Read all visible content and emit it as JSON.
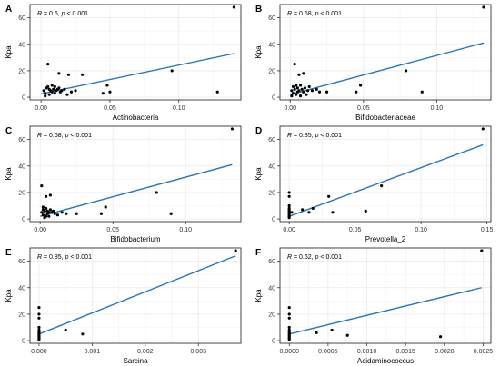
{
  "chart_data": [
    {
      "letter": "A",
      "type": "scatter",
      "xlabel": "Actinobacteria",
      "ylabel": "Kpa",
      "stat": {
        "r_prefix": "R",
        "r_value": " = 0.6, ",
        "p_prefix": "p",
        "p_value": " < 0.001"
      },
      "xlim": [
        -0.008,
        0.145
      ],
      "ylim": [
        -2,
        70
      ],
      "xticks": [
        {
          "v": 0,
          "label": "0.00"
        },
        {
          "v": 0.05,
          "label": "0.05"
        },
        {
          "v": 0.1,
          "label": "0.10"
        }
      ],
      "yticks": [
        {
          "v": 0,
          "label": "0"
        },
        {
          "v": 20,
          "label": "20"
        },
        {
          "v": 40,
          "label": "40"
        },
        {
          "v": 60,
          "label": "60"
        }
      ],
      "fit": [
        [
          0,
          2.5
        ],
        [
          0.14,
          33
        ]
      ],
      "points": [
        [
          0.002,
          5
        ],
        [
          0.003,
          3
        ],
        [
          0.004,
          7
        ],
        [
          0.005,
          8
        ],
        [
          0.005,
          25
        ],
        [
          0.006,
          2
        ],
        [
          0.007,
          5
        ],
        [
          0.008,
          4
        ],
        [
          0.009,
          6
        ],
        [
          0.01,
          8
        ],
        [
          0.01,
          3
        ],
        [
          0.011,
          5
        ],
        [
          0.012,
          6
        ],
        [
          0.013,
          18
        ],
        [
          0.013,
          7
        ],
        [
          0.014,
          4
        ],
        [
          0.015,
          5
        ],
        [
          0.017,
          6
        ],
        [
          0.019,
          2
        ],
        [
          0.02,
          17
        ],
        [
          0.022,
          4
        ],
        [
          0.025,
          5
        ],
        [
          0.03,
          17
        ],
        [
          0.045,
          3
        ],
        [
          0.048,
          9
        ],
        [
          0.05,
          4
        ],
        [
          0.095,
          20
        ],
        [
          0.128,
          4
        ],
        [
          0.14,
          68
        ],
        [
          0.003,
          1
        ],
        [
          0.006,
          6
        ],
        [
          0.008,
          9
        ]
      ]
    },
    {
      "letter": "B",
      "type": "scatter",
      "xlabel": "Bifidobacteriaceae",
      "ylabel": "Kpa",
      "stat": {
        "r_prefix": "R",
        "r_value": " = 0.68, ",
        "p_prefix": "p",
        "p_value": " < 0.001"
      },
      "xlim": [
        -0.007,
        0.137
      ],
      "ylim": [
        -2,
        70
      ],
      "xticks": [
        {
          "v": 0,
          "label": "0.00"
        },
        {
          "v": 0.05,
          "label": "0.05"
        },
        {
          "v": 0.1,
          "label": "0.10"
        }
      ],
      "yticks": [
        {
          "v": 0,
          "label": "0"
        },
        {
          "v": 20,
          "label": "20"
        },
        {
          "v": 40,
          "label": "40"
        },
        {
          "v": 60,
          "label": "60"
        }
      ],
      "fit": [
        [
          0,
          2
        ],
        [
          0.132,
          41
        ]
      ],
      "points": [
        [
          0.001,
          5
        ],
        [
          0.002,
          8
        ],
        [
          0.002,
          3
        ],
        [
          0.003,
          25
        ],
        [
          0.003,
          6
        ],
        [
          0.004,
          2
        ],
        [
          0.005,
          7
        ],
        [
          0.005,
          4
        ],
        [
          0.006,
          17
        ],
        [
          0.006,
          5
        ],
        [
          0.007,
          9
        ],
        [
          0.008,
          6
        ],
        [
          0.009,
          18
        ],
        [
          0.009,
          4
        ],
        [
          0.01,
          7
        ],
        [
          0.011,
          2
        ],
        [
          0.012,
          5
        ],
        [
          0.013,
          8
        ],
        [
          0.015,
          5
        ],
        [
          0.018,
          6
        ],
        [
          0.02,
          4
        ],
        [
          0.025,
          4
        ],
        [
          0.045,
          4
        ],
        [
          0.048,
          9
        ],
        [
          0.079,
          20
        ],
        [
          0.09,
          4
        ],
        [
          0.132,
          68
        ],
        [
          0.001,
          1
        ],
        [
          0.004,
          9
        ],
        [
          0.007,
          1
        ]
      ]
    },
    {
      "letter": "C",
      "type": "scatter",
      "xlabel": "Bifidobacterium",
      "ylabel": "Kpa",
      "stat": {
        "r_prefix": "R",
        "r_value": " = 0.68, ",
        "p_prefix": "p",
        "p_value": " < 0.001"
      },
      "xlim": [
        -0.007,
        0.138
      ],
      "ylim": [
        -2,
        70
      ],
      "xticks": [
        {
          "v": 0,
          "label": "0.00"
        },
        {
          "v": 0.05,
          "label": "0.05"
        },
        {
          "v": 0.1,
          "label": "0.10"
        }
      ],
      "yticks": [
        {
          "v": 0,
          "label": "0"
        },
        {
          "v": 20,
          "label": "20"
        },
        {
          "v": 40,
          "label": "40"
        },
        {
          "v": 60,
          "label": "60"
        }
      ],
      "fit": [
        [
          0,
          2
        ],
        [
          0.132,
          41
        ]
      ],
      "points": [
        [
          0.001,
          5
        ],
        [
          0.001,
          25
        ],
        [
          0.002,
          7
        ],
        [
          0.002,
          3
        ],
        [
          0.003,
          6
        ],
        [
          0.003,
          1
        ],
        [
          0.004,
          17
        ],
        [
          0.004,
          8
        ],
        [
          0.005,
          4
        ],
        [
          0.005,
          6
        ],
        [
          0.006,
          2
        ],
        [
          0.006,
          5
        ],
        [
          0.007,
          18
        ],
        [
          0.007,
          7
        ],
        [
          0.008,
          5
        ],
        [
          0.009,
          6
        ],
        [
          0.01,
          4
        ],
        [
          0.012,
          3
        ],
        [
          0.015,
          5
        ],
        [
          0.018,
          4
        ],
        [
          0.025,
          4
        ],
        [
          0.042,
          4
        ],
        [
          0.045,
          9
        ],
        [
          0.08,
          20
        ],
        [
          0.09,
          4
        ],
        [
          0.132,
          68
        ],
        [
          0.002,
          9
        ],
        [
          0.004,
          2
        ]
      ]
    },
    {
      "letter": "D",
      "type": "scatter",
      "xlabel": "Prevotella_2",
      "ylabel": "Kpa",
      "stat": {
        "r_prefix": "R",
        "r_value": " = 0.85, ",
        "p_prefix": "p",
        "p_value": " < 0.001"
      },
      "xlim": [
        -0.007,
        0.153
      ],
      "ylim": [
        -2,
        70
      ],
      "xticks": [
        {
          "v": 0,
          "label": "0.00"
        },
        {
          "v": 0.05,
          "label": "0.05"
        },
        {
          "v": 0.1,
          "label": "0.10"
        },
        {
          "v": 0.15,
          "label": "0.15"
        }
      ],
      "yticks": [
        {
          "v": 0,
          "label": "0"
        },
        {
          "v": 20,
          "label": "20"
        },
        {
          "v": 40,
          "label": "40"
        },
        {
          "v": 60,
          "label": "60"
        }
      ],
      "fit": [
        [
          0,
          2
        ],
        [
          0.147,
          56
        ]
      ],
      "points": [
        [
          0,
          2
        ],
        [
          0,
          4
        ],
        [
          0,
          5
        ],
        [
          0,
          6
        ],
        [
          0,
          7
        ],
        [
          0,
          8
        ],
        [
          0,
          10
        ],
        [
          0,
          17
        ],
        [
          0,
          20
        ],
        [
          0,
          1
        ],
        [
          0,
          3
        ],
        [
          0.002,
          5
        ],
        [
          0.01,
          7
        ],
        [
          0.015,
          5
        ],
        [
          0.018,
          8
        ],
        [
          0.03,
          17
        ],
        [
          0.033,
          5
        ],
        [
          0.07,
          25
        ],
        [
          0.058,
          6
        ],
        [
          0.147,
          68
        ]
      ]
    },
    {
      "letter": "E",
      "type": "scatter",
      "xlabel": "Sarcina",
      "ylabel": "Kpa",
      "stat": {
        "r_prefix": "R",
        "r_value": " = 0.85, ",
        "p_prefix": "p",
        "p_value": " < 0.001"
      },
      "xlim": [
        -0.00017,
        0.0038
      ],
      "ylim": [
        -2,
        70
      ],
      "xticks": [
        {
          "v": 0,
          "label": "0.000"
        },
        {
          "v": 0.001,
          "label": "0.001"
        },
        {
          "v": 0.002,
          "label": "0.002"
        },
        {
          "v": 0.003,
          "label": "0.003"
        }
      ],
      "yticks": [
        {
          "v": 0,
          "label": "0"
        },
        {
          "v": 20,
          "label": "20"
        },
        {
          "v": 40,
          "label": "40"
        },
        {
          "v": 60,
          "label": "60"
        }
      ],
      "fit": [
        [
          0,
          5
        ],
        [
          0.0037,
          64
        ]
      ],
      "points": [
        [
          0,
          2
        ],
        [
          0,
          3
        ],
        [
          0,
          4
        ],
        [
          0,
          5
        ],
        [
          0,
          6
        ],
        [
          0,
          7
        ],
        [
          0,
          8
        ],
        [
          0,
          10
        ],
        [
          0,
          17
        ],
        [
          0,
          20
        ],
        [
          0,
          25
        ],
        [
          0,
          1
        ],
        [
          0.0005,
          8
        ],
        [
          0.00082,
          5
        ],
        [
          0.0037,
          68
        ]
      ]
    },
    {
      "letter": "F",
      "type": "scatter",
      "xlabel": "Acidaminococcus",
      "ylabel": "Kpa",
      "stat": {
        "r_prefix": "R",
        "r_value": " = 0.62, ",
        "p_prefix": "p",
        "p_value": " < 0.001"
      },
      "xlim": [
        -0.00012,
        0.0026
      ],
      "ylim": [
        -2,
        70
      ],
      "xticks": [
        {
          "v": 0,
          "label": "0.0000"
        },
        {
          "v": 0.0005,
          "label": "0.0005"
        },
        {
          "v": 0.001,
          "label": "0.0010"
        },
        {
          "v": 0.0015,
          "label": "0.0015"
        },
        {
          "v": 0.002,
          "label": "0.0020"
        },
        {
          "v": 0.0025,
          "label": "0.0025"
        }
      ],
      "yticks": [
        {
          "v": 0,
          "label": "0"
        },
        {
          "v": 20,
          "label": "20"
        },
        {
          "v": 40,
          "label": "40"
        },
        {
          "v": 60,
          "label": "60"
        }
      ],
      "fit": [
        [
          0,
          5
        ],
        [
          0.00248,
          40
        ]
      ],
      "points": [
        [
          0,
          2
        ],
        [
          0,
          3
        ],
        [
          0,
          4
        ],
        [
          0,
          5
        ],
        [
          0,
          6
        ],
        [
          0,
          7
        ],
        [
          0,
          8
        ],
        [
          0,
          10
        ],
        [
          0,
          17
        ],
        [
          0,
          20
        ],
        [
          0,
          25
        ],
        [
          0,
          1
        ],
        [
          0.00035,
          6
        ],
        [
          0.00055,
          8
        ],
        [
          0.00075,
          4
        ],
        [
          0.00195,
          3
        ],
        [
          0.00248,
          68
        ]
      ]
    }
  ],
  "colors": {
    "fit_line": "#2e75b6",
    "point": "#000000",
    "grid": "#ebebeb",
    "axis": "#333333"
  }
}
